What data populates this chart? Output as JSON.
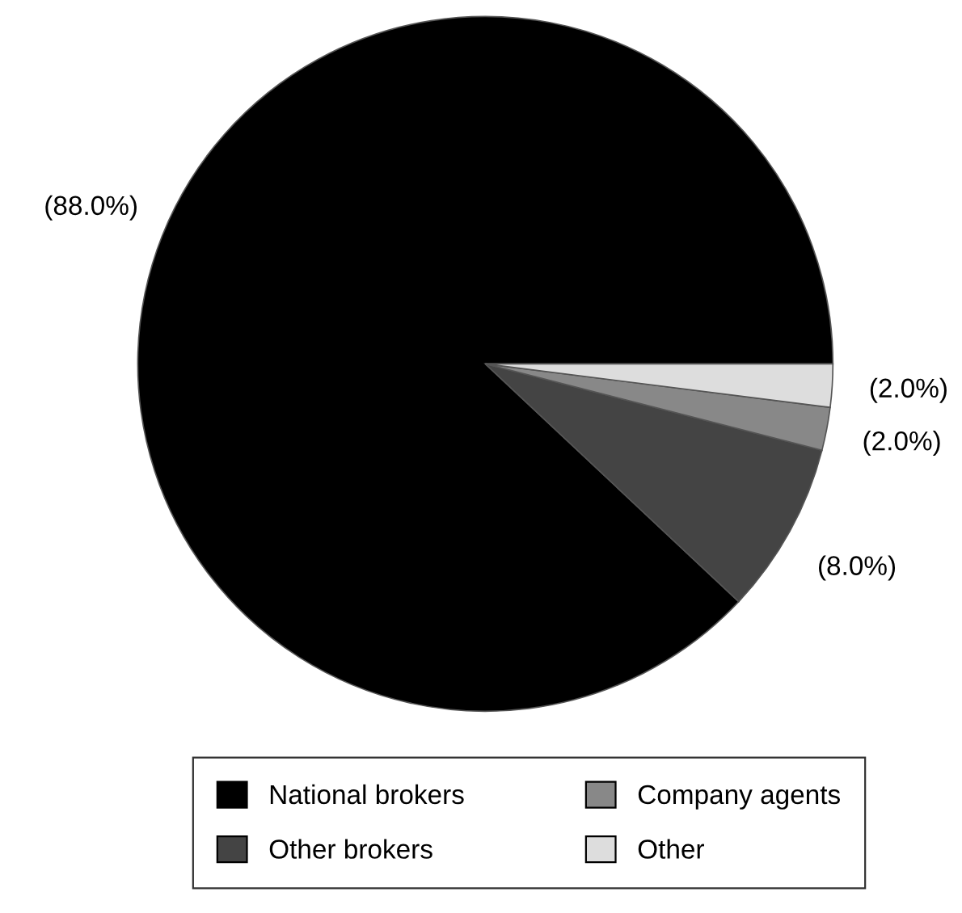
{
  "chart_data": {
    "type": "pie",
    "categories": [
      "National brokers",
      "Other brokers",
      "Company agents",
      "Other"
    ],
    "values": [
      88.0,
      8.0,
      2.0,
      2.0
    ],
    "colors": [
      "#000000",
      "#444444",
      "#888888",
      "#dddddd"
    ],
    "value_labels": [
      "(88.0%)",
      "(8.0%)",
      "(2.0%)",
      "(2.0%)"
    ],
    "legend": "bottom"
  }
}
